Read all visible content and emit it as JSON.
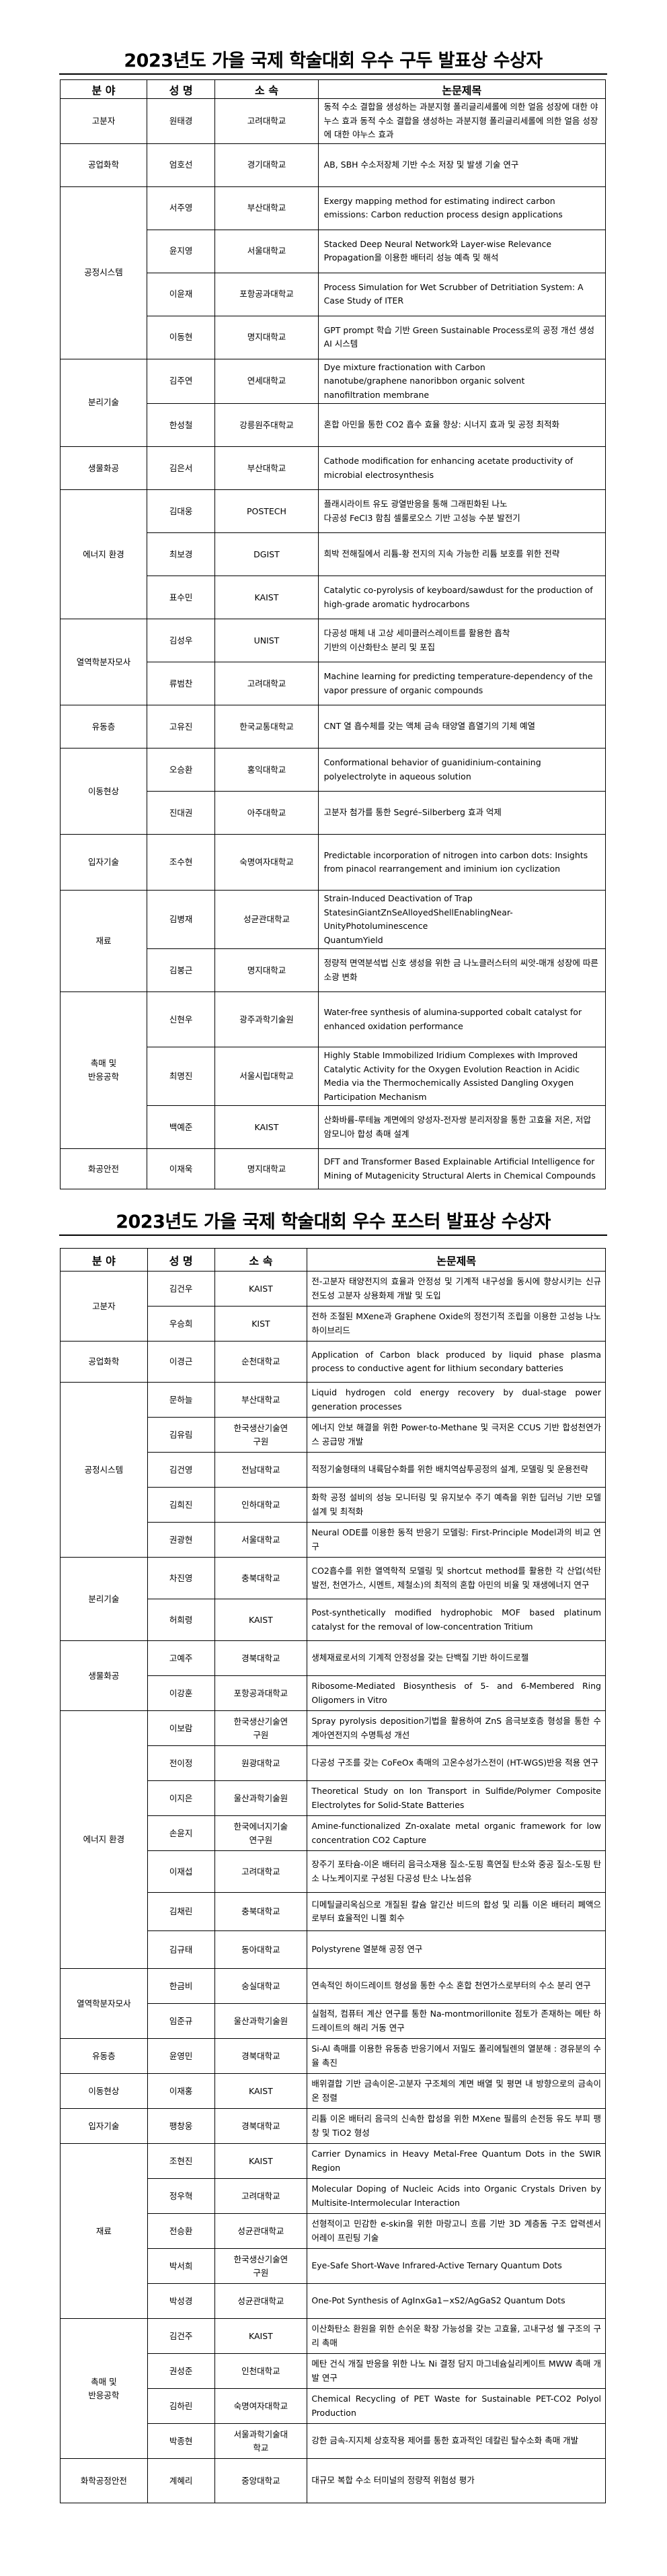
{
  "tables": [
    {
      "title": "2023년도 가을 국제 학술대회 우수 구두 발표상 수상자",
      "headers": [
        "분  야",
        "성  명",
        "소  속",
        "논문제목"
      ],
      "groups": [
        {
          "field": "고분자",
          "rows": [
            {
              "name": "원태경",
              "affiliation": "고려대학교",
              "title": "동적 수소 결합을 생성하는 과분지형 폴리글리세롤에 의한 얼음 성장에 대한 야누스 효과 동적 수소 결합을 생성하는 과분지형 폴리글리세롤에 의한 얼음 성장에 대한 야누스 효과"
            }
          ]
        },
        {
          "field": "공업화학",
          "rows": [
            {
              "name": "엄호선",
              "affiliation": "경기대학교",
              "title": "AB, SBH 수소저장체 기반 수소 저장 및 발생 기술 연구"
            }
          ]
        },
        {
          "field": "공정시스템",
          "rows": [
            {
              "name": "서주영",
              "affiliation": "부산대학교",
              "title": "Exergy mapping method for estimating indirect carbon emissions: Carbon reduction process design applications"
            },
            {
              "name": "윤지영",
              "affiliation": "서울대학교",
              "title": "Stacked Deep Neural Network와 Layer-wise Relevance Propagation을 이용한 배터리 성능 예측 및 해석"
            },
            {
              "name": "이윤재",
              "affiliation": "포항공과대학교",
              "title": "Process Simulation for Wet Scrubber of Detritiation System: A Case Study of ITER"
            },
            {
              "name": "이동현",
              "affiliation": "명지대학교",
              "title": "GPT prompt 학습 기반 Green Sustainable Process로의 공정 개선 생성 AI 시스템"
            }
          ]
        },
        {
          "field": "분리기술",
          "rows": [
            {
              "name": "김주연",
              "affiliation": "연세대학교",
              "title": "Dye mixture fractionation with Carbon\nnanotube/graphene nanoribbon organic solvent\nnanofiltration membrane"
            },
            {
              "name": "한성철",
              "affiliation": "강릉원주대학교",
              "title": "혼합 아민을 통한 CO2 흡수 효율 향상: 시너지 효과 및 공정 최적화"
            }
          ]
        },
        {
          "field": "생물화공",
          "rows": [
            {
              "name": "김은서",
              "affiliation": "부산대학교",
              "title": "Cathode modification for enhancing acetate productivity of microbial electrosynthesis"
            }
          ]
        },
        {
          "field": "에너지 환경",
          "rows": [
            {
              "name": "김대웅",
              "affiliation": "POSTECH",
              "title": "플래시라이트 유도 광열반응을 통해 그래핀화된 나노\n다공성 FeCl3 함침 셀룰로오스 기반 고성능 수분 발전기"
            },
            {
              "name": "최보경",
              "affiliation": "DGIST",
              "title": "희박 전해질에서 리튬-황 전지의 지속 가능한 리튬 보호를 위한 전략"
            },
            {
              "name": "표수민",
              "affiliation": "KAIST",
              "title": "Catalytic co-pyrolysis of keyboard/sawdust for the production of high-grade aromatic hydrocarbons"
            }
          ]
        },
        {
          "field": "열역학분자모사",
          "rows": [
            {
              "name": "김성우",
              "affiliation": "UNIST",
              "title": "다공성 매체 내 고상 세미클러스레이트를 활용한 흡착\n기반의 이산화탄소 분리 및 포집"
            },
            {
              "name": "류범찬",
              "affiliation": "고려대학교",
              "title": "Machine learning for predicting temperature-dependency of the vapor pressure of organic compounds"
            }
          ]
        },
        {
          "field": "유동층",
          "rows": [
            {
              "name": "고유진",
              "affiliation": "한국교통대학교",
              "title": "CNT 열 흡수체를 갖는 액체 금속 태양열 흡열기의 기체 예열"
            }
          ]
        },
        {
          "field": "이동현상",
          "rows": [
            {
              "name": "오승환",
              "affiliation": "홍익대학교",
              "title": "Conformational behavior of guanidinium-containing polyelectrolyte in aqueous solution"
            },
            {
              "name": "진대권",
              "affiliation": "아주대학교",
              "title": "고분자 첨가를 통한 Segré–Silberberg 효과 억제"
            }
          ]
        },
        {
          "field": "입자기술",
          "rows": [
            {
              "name": "조수현",
              "affiliation": "숙명여자대학교",
              "title": "Predictable incorporation of nitrogen into carbon dots: Insights from pinacol rearrangement and iminium ion cyclization"
            }
          ]
        },
        {
          "field": "재료",
          "rows": [
            {
              "name": "김병재",
              "affiliation": "성균관대학교",
              "title": "Strain-Induced Deactivation of Trap\nStatesinGiantZnSeAlloyedShellEnablingNear-UnityPhotoluminescence\nQuantumYield"
            },
            {
              "name": "김봉근",
              "affiliation": "명지대학교",
              "title": "정량적 면역분석법 신호 생성을 위한 금 나노클러스터의 씨앗-매개 성장에 따른 소광 변화"
            }
          ]
        },
        {
          "field": "촉매 및\n반응공학",
          "rows": [
            {
              "name": "신현우",
              "affiliation": "광주과학기술원",
              "title": "Water-free synthesis of alumina-supported cobalt catalyst for enhanced oxidation performance"
            },
            {
              "name": "최명진",
              "affiliation": "서울시립대학교",
              "title": "Highly Stable Immobilized Iridium Complexes with Improved Catalytic Activity for the Oxygen Evolution Reaction in Acidic Media via the Thermochemically Assisted Dangling Oxygen Participation Mechanism"
            },
            {
              "name": "백예준",
              "affiliation": "KAIST",
              "title": "산화바륨-루테늄 계면에의 양성자-전자쌍 분리저장을 통한 고효율 저온, 저압 암모니아 합성 촉매 설계"
            }
          ]
        },
        {
          "field": "화공안전",
          "rows": [
            {
              "name": "이재욱",
              "affiliation": "명지대학교",
              "title": "DFT and Transformer Based Explainable Artificial Intelligence for Mining of Mutagenicity Structural Alerts in Chemical Compounds"
            }
          ]
        }
      ]
    },
    {
      "title": "2023년도 가을 국제 학술대회 우수 포스터 발표상 수상자",
      "headers": [
        "분  야",
        "성  명",
        "소  속",
        "논문제목"
      ],
      "groups": [
        {
          "field": "고분자",
          "rows": [
            {
              "name": "김건우",
              "affiliation": "KAIST",
              "title": "전-고분자 태양전지의 효율과 안정성 및 기계적 내구성을 동시에 향상시키는 신규 전도성 고분자 상용화제 개발 및 도입"
            },
            {
              "name": "우승희",
              "affiliation": "KIST",
              "title": "전하 조절된 MXene과 Graphene Oxide의 정전기적 조립을 이용한 고성능 나노 하이브리드"
            }
          ]
        },
        {
          "field": "공업화학",
          "rows": [
            {
              "name": "이경근",
              "affiliation": "순천대학교",
              "title": "Application of Carbon black produced by liquid phase plasma process to conductive agent for lithium secondary batteries"
            }
          ]
        },
        {
          "field": "공정시스템",
          "rows": [
            {
              "name": "문하늘",
              "affiliation": "부산대학교",
              "title": "Liquid hydrogen cold energy recovery by dual-stage power generation processes"
            },
            {
              "name": "김유림",
              "affiliation": "한국생산기술연\n구원",
              "title": "에너지 안보 해결을 위한 Power-to-Methane 및 극저온 CCUS 기반 합성천연가스 공급망 개발"
            },
            {
              "name": "김건영",
              "affiliation": "전남대학교",
              "title": "적정기술형태의 내륙담수화를 위한 배치역삼투공정의 설계, 모델링 및 운용전략"
            },
            {
              "name": "김희진",
              "affiliation": "인하대학교",
              "title": "화학 공정 설비의 성능 모니터링 및 유지보수 주기 예측을 위한 딥러닝 기반 모델 설계 및 최적화"
            },
            {
              "name": "권광현",
              "affiliation": "서울대학교",
              "title": "Neural ODE를 이용한 동적 반응기 모델링: First-Principle Model과의 비교 연구"
            }
          ]
        },
        {
          "field": "분리기술",
          "rows": [
            {
              "name": "차진영",
              "affiliation": "충북대학교",
              "title": "CO2흡수를 위한 열역학적 모델링 및 shortcut method를 활용한 각 산업(석탄발전, 천연가스, 시멘트, 제철소)의 최적의 혼합 아민의 비율 및 재생에너지 연구"
            },
            {
              "name": "허희령",
              "affiliation": "KAIST",
              "title": "Post-synthetically modified hydrophobic MOF based platinum catalyst for the removal of low-concentration Tritium"
            }
          ]
        },
        {
          "field": "생물화공",
          "rows": [
            {
              "name": "고예주",
              "affiliation": "경북대학교",
              "title": "생체재료로서의 기계적 안정성을 갖는 단백질 기반 하이드로젤"
            },
            {
              "name": "이강훈",
              "affiliation": "포항공과대학교",
              "title": "Ribosome-Mediated Biosynthesis of 5- and 6-Membered Ring Oligomers in Vitro"
            }
          ]
        },
        {
          "field": "에너지 환경",
          "rows": [
            {
              "name": "이보람",
              "affiliation": "한국생산기술연\n구원",
              "title": "Spray pyrolysis deposition기법을 활용하여 ZnS 음극보호층 형성을 통한 수계아연전지의 수명특성 개선"
            },
            {
              "name": "전이정",
              "affiliation": "원광대학교",
              "title": "다공성 구조를 갖는 CoFeOx 촉매의 고온수성가스전이 (HT-WGS)반응 적용 연구"
            },
            {
              "name": "이지은",
              "affiliation": "울산과학기술원",
              "title": "Theoretical Study on Ion Transport in Sulfide/Polymer Composite Electrolytes for Solid-State Batteries"
            },
            {
              "name": "손윤지",
              "affiliation": "한국에너지기술\n연구원",
              "title": "Amine-functionalized Zn-oxalate metal organic framework for low concentration CO2 Capture"
            },
            {
              "name": "이재섭",
              "affiliation": "고려대학교",
              "title": "장주기 포타슘-이온 배터리 음극소재용 질소-도핑 흑연질 탄소와 중공 질소-도핑 탄소 나노케이지로 구성된 다공성 탄소 나노섬유"
            },
            {
              "name": "김채린",
              "affiliation": "충북대학교",
              "title": "디메틸글리옥심으로 개질된 칼슘 알긴산 비드의 합성 및 리튬 이온 배터리 폐액으로부터 효율적인 니켈 회수"
            },
            {
              "name": "김규태",
              "affiliation": "동아대학교",
              "title": "Polystyrene 열분해 공정 연구"
            }
          ]
        },
        {
          "field": "열역학분자모사",
          "rows": [
            {
              "name": "한금비",
              "affiliation": "숭실대학교",
              "title": "연속적인 하이드레이트 형성을 통한 수소 혼합 천연가스로부터의 수소 분리 연구"
            },
            {
              "name": "임준규",
              "affiliation": "울산과학기술원",
              "title": "실험적, 컴퓨터 계산 연구를 통한 Na-montmorillonite 점토가 존재하는 메탄 하드레이트의 해리 거동 연구"
            }
          ]
        },
        {
          "field": "유동층",
          "rows": [
            {
              "name": "윤영민",
              "affiliation": "경북대학교",
              "title": "Si-Al 촉매를 이용한 유동층 반응기에서 저밀도 폴리에틸렌의 열분해 : 경유분의 수율 촉진"
            }
          ]
        },
        {
          "field": "이동현상",
          "rows": [
            {
              "name": "이재홍",
              "affiliation": "KAIST",
              "title": "배위결합 기반 금속이온-고분자 구조체의 계면 배열 및 평면 내 방향으로의 금속이온 정렬"
            }
          ]
        },
        {
          "field": "입자기술",
          "rows": [
            {
              "name": "팽창웅",
              "affiliation": "경북대학교",
              "title": "리튬 이온 배터리 음극의 신속한 합성을 위한 MXene 필름의 손전등 유도 부피 팽창 및  TiO2 형성"
            }
          ]
        },
        {
          "field": "재료",
          "rows": [
            {
              "name": "조현진",
              "affiliation": "KAIST",
              "title": "Carrier Dynamics in Heavy Metal-Free Quantum Dots in the SWIR Region"
            },
            {
              "name": "정우혁",
              "affiliation": "고려대학교",
              "title": "Molecular Doping of Nucleic Acids into Organic Crystals Driven by Multisite-Intermolecular Interaction"
            },
            {
              "name": "전승환",
              "affiliation": "성균관대학교",
              "title": "선형적이고 민감한 e-skin을 위한 마랑고니 흐름 기반 3D 계층돔 구조 압력센서 어레이 프린팅 기술"
            },
            {
              "name": "박서희",
              "affiliation": "한국생산기술연\n구원",
              "title": "Eye-Safe Short-Wave Infrared-Active Ternary Quantum Dots"
            },
            {
              "name": "박성경",
              "affiliation": "성균관대학교",
              "title": "One-Pot Synthesis of AgInxGa1−xS2/AgGaS2 Quantum Dots"
            }
          ]
        },
        {
          "field": "촉매 및\n반응공학",
          "rows": [
            {
              "name": "김건주",
              "affiliation": "KAIST",
              "title": "이산화탄소 환원을 위한 손쉬운 확장 가능성을 갖는 고효율, 고내구성 쉘 구조의 구리 촉매"
            },
            {
              "name": "권성준",
              "affiliation": "인천대학교",
              "title": "메탄 건식 개질 반응을 위한 나노 Ni 결정 담지 마그네슘실리케이트 MWW 촉매 개발 연구"
            },
            {
              "name": "김하린",
              "affiliation": "숙명여자대학교",
              "title": "Chemical Recycling of PET Waste for Sustainable PET-CO2 Polyol Production"
            },
            {
              "name": "박종현",
              "affiliation": "서울과학기술대\n학교",
              "title": "강한 금속-지지체 상호작용 제어를 통한 효과적인 데칼린 탈수소화 촉매 개발"
            }
          ]
        },
        {
          "field": "화학공정안전",
          "rows": [
            {
              "name": "계혜리",
              "affiliation": "중앙대학교",
              "title": "대규모 복합 수소 터미널의 정량적 위험성 평가"
            }
          ]
        }
      ]
    }
  ]
}
